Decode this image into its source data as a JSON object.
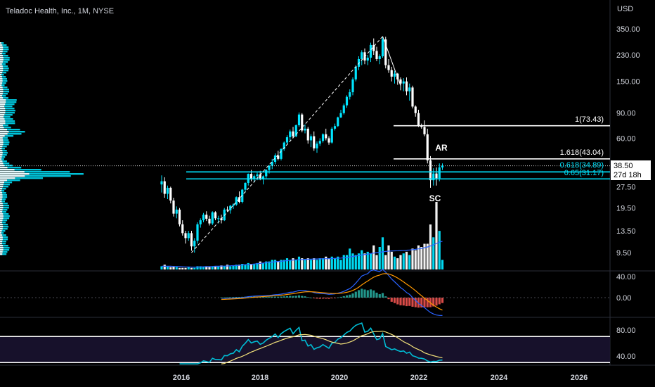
{
  "header": {
    "title": "Teladoc Health, Inc., 1M, NYSE",
    "currency": "USD"
  },
  "price_box": {
    "price": "38.50",
    "countdown": "27d 18h"
  },
  "colors": {
    "up": "#00e5ff",
    "down": "#ffffff",
    "macd_line": "#2962ff",
    "signal_line": "#ff9800",
    "hist_pos": "#26a69a",
    "hist_neg": "#ef5350",
    "rsi_line": "#00bcd4",
    "rsi_ma": "#f3e27a",
    "fib_lines": "#ffffff",
    "support_lines": "#00e5ff"
  },
  "chart_data": [
    {
      "type": "candlestick",
      "scale": "log",
      "price_axis_ticks": [
        "350.00",
        "230.00",
        "150.00",
        "90.00",
        "60.00",
        "38.50",
        "27.50",
        "19.50",
        "13.50",
        "9.50"
      ],
      "x_axis_ticks": [
        "2016",
        "2018",
        "2020",
        "2022",
        "2024",
        "2026"
      ],
      "series": [
        {
          "ohlc": [
            [
              28.5,
              33.0,
              25.0,
              30.0
            ],
            [
              30.0,
              32.0,
              23.0,
              24.5
            ],
            [
              24.5,
              28.0,
              22.5,
              27.0
            ],
            [
              27.0,
              27.5,
              21.0,
              22.0
            ],
            [
              22.0,
              23.0,
              17.0,
              17.8
            ],
            [
              17.8,
              20.0,
              16.5,
              19.0
            ],
            [
              19.0,
              19.5,
              14.5,
              15.0
            ],
            [
              15.0,
              16.0,
              12.5,
              13.0
            ],
            [
              13.0,
              13.5,
              11.0,
              12.0
            ],
            [
              12.0,
              13.5,
              11.5,
              13.0
            ],
            [
              13.0,
              13.5,
              9.8,
              10.5
            ],
            [
              10.5,
              12.0,
              9.5,
              11.5
            ],
            [
              11.5,
              15.5,
              11.0,
              15.0
            ],
            [
              15.0,
              16.5,
              14.2,
              16.0
            ],
            [
              16.0,
              18.0,
              15.5,
              17.5
            ],
            [
              17.5,
              18.5,
              15.8,
              16.4
            ],
            [
              16.4,
              17.2,
              14.7,
              15.2
            ],
            [
              15.2,
              18.5,
              14.8,
              18.2
            ],
            [
              18.2,
              18.5,
              16.0,
              16.5
            ],
            [
              16.5,
              17.2,
              15.2,
              16.5
            ],
            [
              16.5,
              17.5,
              15.2,
              16.0
            ],
            [
              16.0,
              19.5,
              15.8,
              19.0
            ],
            [
              19.0,
              20.0,
              18.4,
              18.8
            ],
            [
              18.8,
              20.5,
              17.8,
              20.2
            ],
            [
              20.2,
              21.0,
              19.2,
              20.6
            ],
            [
              20.6,
              23.5,
              20.2,
              23.2
            ],
            [
              23.2,
              25.5,
              21.0,
              21.5
            ],
            [
              21.5,
              26.5,
              21.0,
              26.2
            ],
            [
              26.2,
              29.5,
              25.0,
              29.2
            ],
            [
              29.2,
              34.0,
              28.0,
              33.8
            ],
            [
              33.8,
              36.0,
              30.0,
              31.2
            ],
            [
              31.2,
              33.5,
              29.5,
              32.6
            ],
            [
              32.6,
              34.5,
              30.5,
              33.5
            ],
            [
              33.5,
              35.5,
              30.5,
              31.0
            ],
            [
              31.0,
              33.0,
              28.5,
              32.5
            ],
            [
              32.5,
              36.5,
              31.5,
              36.0
            ],
            [
              36.0,
              39.0,
              34.0,
              38.5
            ],
            [
              38.5,
              43.0,
              36.5,
              41.0
            ],
            [
              41.0,
              47.0,
              39.5,
              45.5
            ],
            [
              45.5,
              49.0,
              42.0,
              43.0
            ],
            [
              43.0,
              51.0,
              42.0,
              50.5
            ],
            [
              50.5,
              57.0,
              49.0,
              56.0
            ],
            [
              56.0,
              63.0,
              54.0,
              61.0
            ],
            [
              61.0,
              69.0,
              58.0,
              67.0
            ],
            [
              67.0,
              72.0,
              60.0,
              62.0
            ],
            [
              62.0,
              75.0,
              61.0,
              74.0
            ],
            [
              74.0,
              91.0,
              72.0,
              88.0
            ],
            [
              88.0,
              90.0,
              66.0,
              68.0
            ],
            [
              68.0,
              75.0,
              65.0,
              70.0
            ],
            [
              70.0,
              72.0,
              55.0,
              58.0
            ],
            [
              58.0,
              64.0,
              52.0,
              62.0
            ],
            [
              62.0,
              67.0,
              49.0,
              51.0
            ],
            [
              51.0,
              57.0,
              47.5,
              55.0
            ],
            [
              55.0,
              60.0,
              53.0,
              57.5
            ],
            [
              57.5,
              65.0,
              56.0,
              64.0
            ],
            [
              64.0,
              70.0,
              58.0,
              60.0
            ],
            [
              60.0,
              62.0,
              54.0,
              56.0
            ],
            [
              56.0,
              72.0,
              55.0,
              70.0
            ],
            [
              70.0,
              76.0,
              68.0,
              73.0
            ],
            [
              73.0,
              85.0,
              72.0,
              84.0
            ],
            [
              84.0,
              95.0,
              83.0,
              90.0
            ],
            [
              90.0,
              105.0,
              88.0,
              102.0
            ],
            [
              102.0,
              120.0,
              98.0,
              117.0
            ],
            [
              117.0,
              132.0,
              112.0,
              126.0
            ],
            [
              126.0,
              160.0,
              120.0,
              155.0
            ],
            [
              155.0,
              195.0,
              150.0,
              190.0
            ],
            [
              190.0,
              225.0,
              180.0,
              215.0
            ],
            [
              215.0,
              248.0,
              195.0,
              240.0
            ],
            [
              240.0,
              255.0,
              198.0,
              210.0
            ],
            [
              210.0,
              230.0,
              195.0,
              220.0
            ],
            [
              220.0,
              280.0,
              205.0,
              270.0
            ],
            [
              270.0,
              300.0,
              230.0,
              245.0
            ],
            [
              245.0,
              262.0,
              208.0,
              215.0
            ],
            [
              215.0,
              232.0,
              198.0,
              225.0
            ],
            [
              225.0,
              310.0,
              220.0,
              295.0
            ],
            [
              295.0,
              308.0,
              185.0,
              195.0
            ],
            [
              195.0,
              215.0,
              172.0,
              180.0
            ],
            [
              180.0,
              190.0,
              150.0,
              162.0
            ],
            [
              162.0,
              178.0,
              145.0,
              170.0
            ],
            [
              170.0,
              172.0,
              142.0,
              155.0
            ],
            [
              155.0,
              160.0,
              130.0,
              145.0
            ],
            [
              145.0,
              158.0,
              128.0,
              150.0
            ],
            [
              150.0,
              160.0,
              120.0,
              128.0
            ],
            [
              128.0,
              145.0,
              110.0,
              136.0
            ],
            [
              136.0,
              140.0,
              97.0,
              100.0
            ],
            [
              100.0,
              102.0,
              85.0,
              90.0
            ],
            [
              90.0,
              95.0,
              72.0,
              74.0
            ],
            [
              74.0,
              76.0,
              70.0,
              72.0
            ],
            [
              72.0,
              80.0,
              62.0,
              64.0
            ],
            [
              64.0,
              70.0,
              40.0,
              42.0
            ],
            [
              42.0,
              45.0,
              27.0,
              30.5
            ],
            [
              30.5,
              37.0,
              28.0,
              34.0
            ],
            [
              34.0,
              37.5,
              28.0,
              31.5
            ],
            [
              31.5,
              40.0,
              30.0,
              37.5
            ],
            [
              37.5,
              40.0,
              36.0,
              38.5
            ]
          ],
          "volume": [
            2,
            3,
            2,
            1.5,
            2,
            1.5,
            1,
            1,
            1,
            1.5,
            1,
            1,
            2,
            2,
            1.5,
            2,
            1.5,
            2,
            2,
            2,
            2.5,
            2,
            3,
            2,
            2.5,
            3,
            3,
            3.5,
            3,
            4,
            3.5,
            3.5,
            4,
            5,
            4,
            5,
            5,
            6,
            6,
            5,
            6,
            6,
            7,
            6,
            7,
            6,
            8,
            7,
            6,
            7,
            6,
            7,
            6,
            7,
            7,
            8,
            7,
            8,
            7,
            8,
            6,
            9,
            9,
            13,
            10,
            9,
            10,
            12,
            10,
            11,
            10,
            15,
            9,
            14,
            20,
            9,
            15,
            11,
            8,
            7,
            9,
            10,
            11,
            9,
            13,
            12,
            15,
            14,
            16,
            16,
            28,
            20,
            42,
            24,
            6
          ],
          "volume_ma": [
            2,
            2,
            2,
            2,
            1.9,
            1.9,
            1.8,
            1.7,
            1.6,
            1.6,
            1.5,
            1.5,
            1.5,
            1.6,
            1.7,
            1.8,
            1.8,
            1.9,
            2,
            2,
            2.1,
            2.1,
            2.2,
            2.3,
            2.4,
            2.5,
            2.6,
            2.8,
            3,
            3.1,
            3.2,
            3.4,
            3.6,
            3.8,
            4,
            4.2,
            4.4,
            4.6,
            4.8,
            5,
            5.1,
            5.3,
            5.5,
            5.7,
            5.9,
            6,
            6.1,
            6.2,
            6.3,
            6.4,
            6.4,
            6.5,
            6.5,
            6.6,
            6.6,
            6.7,
            6.7,
            6.8,
            6.9,
            7,
            7.1,
            7.3,
            7.5,
            7.8,
            8.1,
            8.4,
            8.7,
            9,
            9.3,
            9.6,
            9.9,
            10.2,
            10.5,
            10.7,
            11,
            11.2,
            11.4,
            11.5,
            11.6,
            11.7,
            11.8,
            11.9,
            12,
            12.1,
            12.3,
            12.5,
            12.8,
            13.1,
            13.5,
            14,
            14.6,
            15.3,
            16.2,
            17,
            17.5
          ]
        }
      ]
    },
    {
      "type": "histogram_line",
      "axis_ticks": [
        "40.00",
        "0.00"
      ],
      "series": [
        {
          "name": "MACD"
        },
        {
          "name": "Signal"
        }
      ]
    },
    {
      "type": "line",
      "axis_ticks": [
        "80.00",
        "40.00"
      ],
      "series": [
        {
          "name": "RSI"
        },
        {
          "name": "RSI MA"
        }
      ]
    }
  ],
  "annotations": {
    "fib_1": "1(73.43)",
    "fib_1618": "1.618(43.04)",
    "fib_0618": "0.618(34.89)",
    "fib_065": "0.65(31.17)",
    "ar": "AR",
    "sc": "SC"
  }
}
